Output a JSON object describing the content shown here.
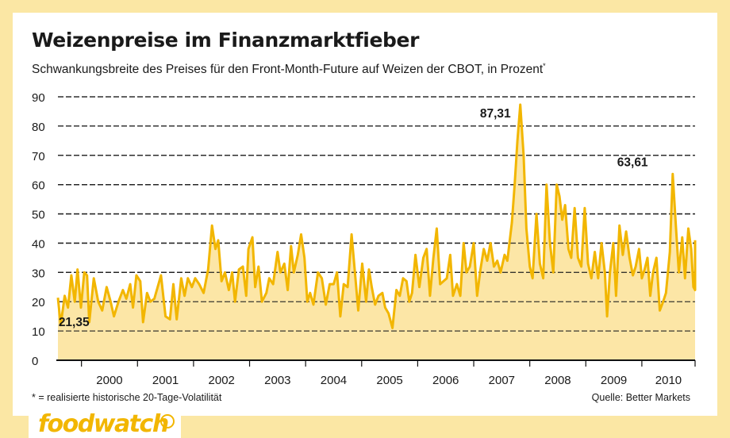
{
  "header": {
    "title": "Weizenpreise im Finanzmarktfieber",
    "subtitle": "Schwankungsbreite des Preises für den Front-Month-Future auf Weizen der CBOT, in Prozent",
    "subtitle_mark": "*"
  },
  "footer": {
    "footnote": "* = realisierte historische 20-Tage-Volatilität",
    "source": "Quelle: Better Markets"
  },
  "brand": {
    "logo_text": "foodwatch",
    "logo_icon": "apple-icon",
    "color": "#f2b600"
  },
  "colors": {
    "line": "#f2b600",
    "fill": "#fce6a6",
    "background": "#fbe7a4"
  },
  "chart_data": {
    "type": "area",
    "title": "Weizenpreise im Finanzmarktfieber",
    "xlabel": "",
    "ylabel": "",
    "ylim": [
      0,
      90
    ],
    "xlim": [
      1999.58,
      2010.95
    ],
    "yticks": [
      "0",
      "10",
      "20",
      "30",
      "40",
      "50",
      "60",
      "70",
      "80",
      "90"
    ],
    "xticks": [
      {
        "label": "2000",
        "value": 2000
      },
      {
        "label": "2001",
        "value": 2001
      },
      {
        "label": "2002",
        "value": 2002
      },
      {
        "label": "2003",
        "value": 2003
      },
      {
        "label": "2004",
        "value": 2004
      },
      {
        "label": "2005",
        "value": 2005
      },
      {
        "label": "2006",
        "value": 2006
      },
      {
        "label": "2007",
        "value": 2007
      },
      {
        "label": "2008",
        "value": 2008
      },
      {
        "label": "2009",
        "value": 2009
      },
      {
        "label": "2010",
        "value": 2010
      }
    ],
    "grid": true,
    "annotations": [
      {
        "label": "21,35",
        "x": 1999.62,
        "y": 21.35
      },
      {
        "label": "87,31",
        "x": 2007.83,
        "y": 87.31
      },
      {
        "label": "63,61",
        "x": 2010.25,
        "y": 63.61
      }
    ],
    "series": [
      {
        "points": [
          [
            1999.58,
            21.35
          ],
          [
            1999.63,
            12
          ],
          [
            1999.7,
            22
          ],
          [
            1999.76,
            18
          ],
          [
            1999.82,
            29
          ],
          [
            1999.88,
            20
          ],
          [
            1999.93,
            31
          ],
          [
            1999.99,
            18
          ],
          [
            2000.05,
            30
          ],
          [
            2000.1,
            29
          ],
          [
            2000.14,
            13
          ],
          [
            2000.22,
            28
          ],
          [
            2000.3,
            20
          ],
          [
            2000.37,
            17
          ],
          [
            2000.45,
            25
          ],
          [
            2000.52,
            20
          ],
          [
            2000.58,
            15
          ],
          [
            2000.66,
            20
          ],
          [
            2000.74,
            24
          ],
          [
            2000.8,
            21
          ],
          [
            2000.87,
            26
          ],
          [
            2000.92,
            18
          ],
          [
            2000.98,
            29
          ],
          [
            2001.05,
            27
          ],
          [
            2001.1,
            13
          ],
          [
            2001.17,
            23
          ],
          [
            2001.23,
            20
          ],
          [
            2001.3,
            21
          ],
          [
            2001.36,
            25
          ],
          [
            2001.42,
            29
          ],
          [
            2001.5,
            15
          ],
          [
            2001.58,
            14
          ],
          [
            2001.64,
            26
          ],
          [
            2001.7,
            14
          ],
          [
            2001.78,
            28
          ],
          [
            2001.84,
            22
          ],
          [
            2001.9,
            28
          ],
          [
            2001.97,
            25
          ],
          [
            2002.03,
            28
          ],
          [
            2002.1,
            26
          ],
          [
            2002.18,
            23
          ],
          [
            2002.26,
            31
          ],
          [
            2002.33,
            46
          ],
          [
            2002.39,
            38
          ],
          [
            2002.44,
            41
          ],
          [
            2002.5,
            27
          ],
          [
            2002.56,
            30
          ],
          [
            2002.63,
            24
          ],
          [
            2002.69,
            30
          ],
          [
            2002.74,
            20
          ],
          [
            2002.81,
            31
          ],
          [
            2002.88,
            32
          ],
          [
            2002.94,
            22
          ],
          [
            2002.98,
            38
          ],
          [
            2003.05,
            42
          ],
          [
            2003.1,
            25
          ],
          [
            2003.16,
            32
          ],
          [
            2003.22,
            20
          ],
          [
            2003.3,
            23
          ],
          [
            2003.35,
            28
          ],
          [
            2003.42,
            26
          ],
          [
            2003.5,
            37
          ],
          [
            2003.55,
            30
          ],
          [
            2003.62,
            33
          ],
          [
            2003.68,
            24
          ],
          [
            2003.74,
            39
          ],
          [
            2003.79,
            30
          ],
          [
            2003.86,
            36
          ],
          [
            2003.92,
            43
          ],
          [
            2003.98,
            35
          ],
          [
            2004.03,
            20
          ],
          [
            2004.08,
            23
          ],
          [
            2004.14,
            19
          ],
          [
            2004.22,
            30
          ],
          [
            2004.29,
            28
          ],
          [
            2004.36,
            19
          ],
          [
            2004.43,
            26
          ],
          [
            2004.5,
            26
          ],
          [
            2004.56,
            30
          ],
          [
            2004.62,
            15
          ],
          [
            2004.68,
            26
          ],
          [
            2004.75,
            25
          ],
          [
            2004.82,
            43
          ],
          [
            2004.88,
            30
          ],
          [
            2004.94,
            17
          ],
          [
            2005.01,
            33
          ],
          [
            2005.08,
            20
          ],
          [
            2005.13,
            31
          ],
          [
            2005.18,
            25
          ],
          [
            2005.24,
            19
          ],
          [
            2005.3,
            22
          ],
          [
            2005.37,
            23
          ],
          [
            2005.42,
            18
          ],
          [
            2005.48,
            16
          ],
          [
            2005.55,
            11
          ],
          [
            2005.62,
            24
          ],
          [
            2005.68,
            22
          ],
          [
            2005.74,
            28
          ],
          [
            2005.8,
            27
          ],
          [
            2005.85,
            20
          ],
          [
            2005.9,
            23
          ],
          [
            2005.96,
            36
          ],
          [
            2006.03,
            25
          ],
          [
            2006.1,
            35
          ],
          [
            2006.16,
            38
          ],
          [
            2006.22,
            22
          ],
          [
            2006.28,
            35
          ],
          [
            2006.34,
            45
          ],
          [
            2006.4,
            26
          ],
          [
            2006.46,
            27
          ],
          [
            2006.52,
            28
          ],
          [
            2006.58,
            36
          ],
          [
            2006.63,
            22
          ],
          [
            2006.7,
            26
          ],
          [
            2006.76,
            22
          ],
          [
            2006.82,
            40
          ],
          [
            2006.87,
            30
          ],
          [
            2006.93,
            32
          ],
          [
            2007.0,
            40
          ],
          [
            2007.06,
            22
          ],
          [
            2007.12,
            31
          ],
          [
            2007.18,
            38
          ],
          [
            2007.24,
            34
          ],
          [
            2007.3,
            40
          ],
          [
            2007.36,
            32
          ],
          [
            2007.42,
            34
          ],
          [
            2007.48,
            30
          ],
          [
            2007.55,
            36
          ],
          [
            2007.6,
            34
          ],
          [
            2007.68,
            47
          ],
          [
            2007.73,
            60
          ],
          [
            2007.78,
            75
          ],
          [
            2007.83,
            87.31
          ],
          [
            2007.89,
            70
          ],
          [
            2007.94,
            45
          ],
          [
            2008.0,
            32
          ],
          [
            2008.05,
            28
          ],
          [
            2008.12,
            50
          ],
          [
            2008.18,
            33
          ],
          [
            2008.24,
            28
          ],
          [
            2008.3,
            60
          ],
          [
            2008.36,
            40
          ],
          [
            2008.42,
            30
          ],
          [
            2008.48,
            60
          ],
          [
            2008.53,
            56
          ],
          [
            2008.58,
            48
          ],
          [
            2008.63,
            53
          ],
          [
            2008.69,
            38
          ],
          [
            2008.74,
            35
          ],
          [
            2008.8,
            52
          ],
          [
            2008.86,
            35
          ],
          [
            2008.92,
            32
          ],
          [
            2008.98,
            52
          ],
          [
            2009.04,
            33
          ],
          [
            2009.1,
            28
          ],
          [
            2009.16,
            37
          ],
          [
            2009.22,
            28
          ],
          [
            2009.28,
            40
          ],
          [
            2009.34,
            30
          ],
          [
            2009.38,
            15
          ],
          [
            2009.43,
            30
          ],
          [
            2009.49,
            40
          ],
          [
            2009.54,
            22
          ],
          [
            2009.6,
            46
          ],
          [
            2009.66,
            36
          ],
          [
            2009.72,
            44
          ],
          [
            2009.78,
            35
          ],
          [
            2009.84,
            29
          ],
          [
            2009.89,
            32
          ],
          [
            2009.95,
            38
          ],
          [
            2010.0,
            28
          ],
          [
            2010.05,
            31
          ],
          [
            2010.1,
            35
          ],
          [
            2010.15,
            22
          ],
          [
            2010.2,
            30
          ],
          [
            2010.26,
            35
          ],
          [
            2010.32,
            17
          ],
          [
            2010.38,
            20
          ],
          [
            2010.43,
            23
          ],
          [
            2010.5,
            37
          ],
          [
            2010.55,
            63.61
          ],
          [
            2010.61,
            45
          ],
          [
            2010.66,
            30
          ],
          [
            2010.72,
            42
          ],
          [
            2010.77,
            28
          ],
          [
            2010.83,
            45
          ],
          [
            2010.88,
            38
          ],
          [
            2010.92,
            25
          ],
          [
            2010.98,
            24
          ],
          [
            2011.03,
            41
          ]
        ]
      }
    ]
  }
}
